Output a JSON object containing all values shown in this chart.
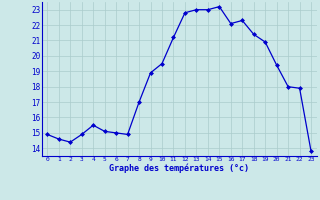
{
  "hours": [
    0,
    1,
    2,
    3,
    4,
    5,
    6,
    7,
    8,
    9,
    10,
    11,
    12,
    13,
    14,
    15,
    16,
    17,
    18,
    19,
    20,
    21,
    22,
    23
  ],
  "temperatures": [
    14.9,
    14.6,
    14.4,
    14.9,
    15.5,
    15.1,
    15.0,
    14.9,
    17.0,
    18.9,
    19.5,
    21.2,
    22.8,
    23.0,
    23.0,
    23.2,
    22.1,
    22.3,
    21.4,
    20.9,
    19.4,
    18.0,
    17.9,
    13.8
  ],
  "line_color": "#0000cc",
  "marker": "D",
  "marker_size": 2.0,
  "bg_color": "#cce8e8",
  "grid_color": "#aacccc",
  "xlabel": "Graphe des températures (°c)",
  "xlabel_color": "#0000cc",
  "tick_color": "#0000cc",
  "ylim": [
    13.5,
    23.5
  ],
  "xlim": [
    -0.5,
    23.5
  ],
  "yticks": [
    14,
    15,
    16,
    17,
    18,
    19,
    20,
    21,
    22,
    23
  ],
  "xticks": [
    0,
    1,
    2,
    3,
    4,
    5,
    6,
    7,
    8,
    9,
    10,
    11,
    12,
    13,
    14,
    15,
    16,
    17,
    18,
    19,
    20,
    21,
    22,
    23
  ]
}
